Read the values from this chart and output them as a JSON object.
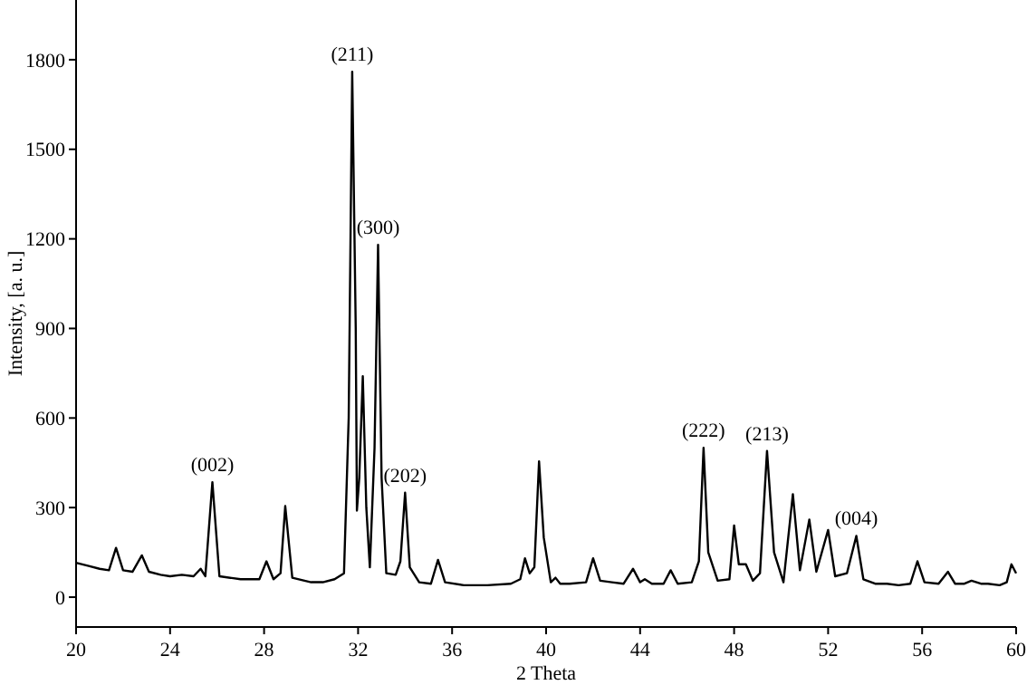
{
  "chart_data": {
    "type": "line",
    "xlabel": "2 Theta",
    "ylabel": "Intensity, [a. u.]",
    "xlim": [
      20,
      60
    ],
    "xticks": [
      20,
      24,
      28,
      32,
      36,
      40,
      44,
      48,
      52,
      56,
      60
    ],
    "ylim": [
      -100,
      2000
    ],
    "yticks": [
      0,
      300,
      600,
      900,
      1200,
      1500,
      1800
    ],
    "grid": false,
    "marker": "none",
    "line_style": "solid",
    "series": [
      {
        "color": "#000000",
        "x": [
          20,
          20.5,
          21,
          21.4,
          21.7,
          22,
          22.4,
          22.8,
          23.1,
          23.6,
          24,
          24.5,
          25,
          25.3,
          25.5,
          25.8,
          26.1,
          27,
          27.8,
          28.1,
          28.4,
          28.7,
          28.9,
          29.2,
          30,
          30.5,
          31,
          31.4,
          31.6,
          31.75,
          31.9,
          31.95,
          32.05,
          32.2,
          32.35,
          32.5,
          32.7,
          32.85,
          33,
          33.2,
          33.6,
          33.8,
          34,
          34.2,
          34.6,
          35.1,
          35.4,
          35.7,
          36.5,
          37.5,
          38.5,
          38.9,
          39.1,
          39.3,
          39.5,
          39.7,
          39.9,
          40.2,
          40.4,
          40.6,
          41,
          41.7,
          42,
          42.3,
          42.8,
          43.3,
          43.7,
          44,
          44.2,
          44.5,
          45,
          45.3,
          45.6,
          46.2,
          46.5,
          46.7,
          46.9,
          47.3,
          47.8,
          48,
          48.2,
          48.5,
          48.8,
          49.1,
          49.4,
          49.7,
          50.1,
          50.5,
          50.8,
          51.2,
          51.5,
          52,
          52.3,
          52.8,
          53.2,
          53.5,
          54,
          54.5,
          55,
          55.5,
          55.8,
          56.1,
          56.7,
          57.1,
          57.4,
          57.8,
          58.1,
          58.5,
          58.8,
          59.3,
          59.6,
          59.8,
          60
        ],
        "values": [
          115,
          105,
          95,
          90,
          165,
          90,
          85,
          140,
          85,
          75,
          70,
          75,
          70,
          95,
          70,
          385,
          70,
          60,
          60,
          120,
          60,
          80,
          305,
          65,
          50,
          50,
          60,
          80,
          600,
          1760,
          900,
          290,
          400,
          740,
          300,
          100,
          500,
          1180,
          400,
          80,
          75,
          120,
          350,
          100,
          50,
          45,
          125,
          50,
          40,
          40,
          45,
          60,
          130,
          80,
          100,
          455,
          200,
          50,
          65,
          45,
          45,
          50,
          130,
          55,
          50,
          45,
          95,
          50,
          60,
          45,
          45,
          90,
          45,
          50,
          120,
          500,
          150,
          55,
          60,
          240,
          110,
          110,
          55,
          80,
          490,
          150,
          50,
          345,
          90,
          260,
          85,
          225,
          70,
          80,
          205,
          60,
          45,
          45,
          40,
          45,
          120,
          50,
          45,
          85,
          45,
          45,
          55,
          45,
          45,
          40,
          50,
          110,
          80
        ]
      }
    ],
    "annotations": [
      {
        "text": "(002)",
        "x": 25.8,
        "y": 385
      },
      {
        "text": "(211)",
        "x": 31.75,
        "y": 1760
      },
      {
        "text": "(300)",
        "x": 32.85,
        "y": 1180
      },
      {
        "text": "(202)",
        "x": 34.0,
        "y": 350
      },
      {
        "text": "(222)",
        "x": 46.7,
        "y": 500
      },
      {
        "text": "(213)",
        "x": 49.4,
        "y": 490
      },
      {
        "text": "(004)",
        "x": 53.2,
        "y": 205
      }
    ]
  }
}
